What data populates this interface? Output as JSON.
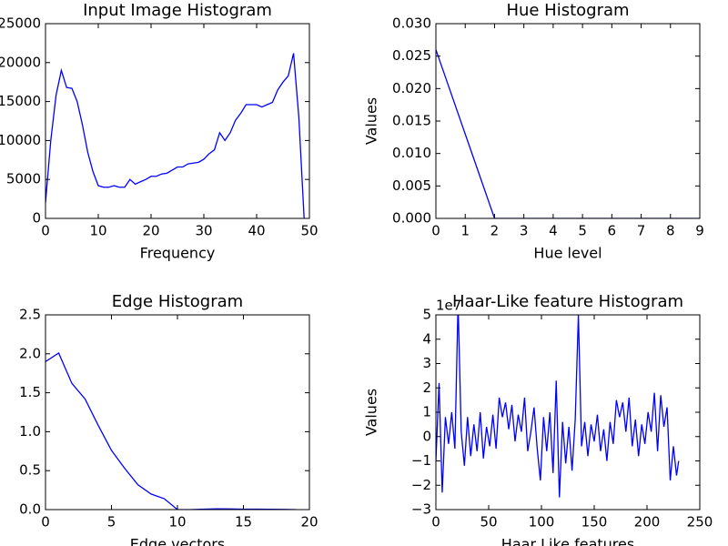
{
  "chart_data": [
    {
      "type": "line",
      "title": "Input Image Histogram",
      "x_label": "Frequency",
      "color": "#0000ff",
      "x": [
        0,
        1,
        2,
        3,
        4,
        5,
        6,
        7,
        8,
        9,
        10,
        11,
        12,
        13,
        14,
        15,
        16,
        17,
        18,
        19,
        20,
        21,
        22,
        23,
        24,
        25,
        26,
        27,
        28,
        29,
        30,
        31,
        32,
        33,
        34,
        35,
        36,
        37,
        38,
        39,
        40,
        41,
        42,
        43,
        44,
        45,
        46,
        47,
        48,
        49
      ],
      "values": [
        2000,
        10000,
        15800,
        19000,
        16800,
        16700,
        15000,
        12000,
        8500,
        6000,
        4200,
        4000,
        4000,
        4200,
        4000,
        4000,
        5000,
        4400,
        4700,
        5000,
        5400,
        5400,
        5700,
        5800,
        6200,
        6600,
        6600,
        7000,
        7100,
        7200,
        7600,
        8300,
        8800,
        11000,
        10000,
        11000,
        12600,
        13500,
        14600,
        14600,
        14600,
        14300,
        14600,
        14900,
        16500,
        17500,
        18300,
        21200,
        13000,
        0
      ],
      "xlim": [
        0,
        50
      ],
      "xticks": [
        0,
        10,
        20,
        30,
        40,
        50
      ],
      "ylim": [
        0,
        25000
      ],
      "yticks": [
        0,
        5000,
        10000,
        15000,
        20000,
        25000
      ]
    },
    {
      "type": "line",
      "title": "Hue Histogram",
      "x_label": "Hue level",
      "y_label": "Values",
      "color": "#0000ff",
      "x": [
        0,
        1,
        2,
        3,
        4,
        5,
        6,
        7,
        8,
        9
      ],
      "values": [
        0.026,
        0.013,
        0,
        0,
        0,
        0,
        0,
        0,
        0,
        0
      ],
      "xlim": [
        0,
        9
      ],
      "xticks": [
        0,
        1,
        2,
        3,
        4,
        5,
        6,
        7,
        8,
        9
      ],
      "ylim": [
        0,
        0.03
      ],
      "yticks": [
        {
          "value": 0,
          "label": "0.000"
        },
        0.005,
        {
          "value": 0.01,
          "label": "0.010"
        },
        0.015,
        {
          "value": 0.02,
          "label": "0.020"
        },
        0.025,
        {
          "value": 0.03,
          "label": "0.030"
        }
      ]
    },
    {
      "type": "line",
      "title": "Edge Histogram",
      "x_label": "Edge vectors",
      "y_label": "Values",
      "color": "#0000ff",
      "x": [
        0,
        1,
        2,
        3,
        4,
        5,
        6,
        7,
        8,
        9,
        10,
        11,
        12,
        13,
        14,
        15,
        16,
        17,
        18,
        19
      ],
      "values": [
        1.9,
        2.01,
        1.62,
        1.42,
        1.08,
        0.76,
        0.53,
        0.32,
        0.2,
        0.14,
        0,
        0,
        0.005,
        0.01,
        0.008,
        0.006,
        0.005,
        0.004,
        0.003,
        0
      ],
      "xlim": [
        0,
        20
      ],
      "xticks": [
        0,
        5,
        10,
        15,
        20
      ],
      "ylim": [
        0,
        2.5
      ],
      "yticks": [
        {
          "value": 0,
          "label": "0.0"
        },
        0.5,
        {
          "value": 1,
          "label": "1.0"
        },
        1.5,
        {
          "value": 2,
          "label": "2.0"
        },
        2.5
      ]
    },
    {
      "type": "line",
      "title": "Haar-Like feature Histogram",
      "x_label": "Haar Like features",
      "y_label": "Values",
      "offset_label": "1e7",
      "color": "#0000ff",
      "x": [
        0,
        3,
        6,
        9,
        12,
        15,
        18,
        21,
        24,
        27,
        30,
        33,
        36,
        39,
        42,
        45,
        48,
        51,
        54,
        57,
        60,
        63,
        66,
        69,
        72,
        75,
        78,
        81,
        84,
        87,
        90,
        93,
        96,
        99,
        102,
        105,
        108,
        111,
        114,
        117,
        120,
        123,
        126,
        129,
        132,
        135,
        138,
        141,
        144,
        147,
        150,
        153,
        156,
        159,
        162,
        165,
        168,
        171,
        174,
        177,
        180,
        183,
        186,
        189,
        192,
        195,
        198,
        201,
        204,
        207,
        210,
        213,
        216,
        219,
        222,
        225,
        228,
        230
      ],
      "values": [
        -1.0,
        2.2,
        -2.3,
        0.8,
        -0.3,
        1.0,
        -0.5,
        5.5,
        0.2,
        -1.2,
        0.8,
        -0.8,
        0.5,
        -0.6,
        1.0,
        -0.9,
        0.4,
        -0.4,
        0.9,
        -0.5,
        1.6,
        0.8,
        1.4,
        0.3,
        1.3,
        -0.2,
        0.9,
        0.2,
        1.6,
        -0.6,
        0.2,
        1.2,
        -0.5,
        -1.8,
        0.8,
        -0.6,
        1.0,
        -1.5,
        2.3,
        -2.5,
        0.6,
        -1.1,
        0.4,
        -1.4,
        0.7,
        5.0,
        -0.4,
        0.6,
        -0.8,
        0.5,
        -0.2,
        0.9,
        -0.6,
        0.3,
        -1.0,
        0.6,
        -0.3,
        1.5,
        0.8,
        1.4,
        0.2,
        1.6,
        -0.4,
        0.7,
        -0.8,
        0.5,
        -0.3,
        1.0,
        0.2,
        1.8,
        -0.6,
        1.7,
        0.4,
        1.2,
        -1.8,
        -0.4,
        -1.6,
        -1.0
      ],
      "xlim": [
        0,
        250
      ],
      "xticks": [
        0,
        50,
        100,
        150,
        200,
        250
      ],
      "ylim": [
        -3,
        5
      ],
      "yticks": [
        {
          "value": -3,
          "label": "−3"
        },
        {
          "value": -2,
          "label": "−2"
        },
        {
          "value": -1,
          "label": "−1"
        },
        0,
        1,
        2,
        3,
        4,
        5
      ]
    }
  ]
}
